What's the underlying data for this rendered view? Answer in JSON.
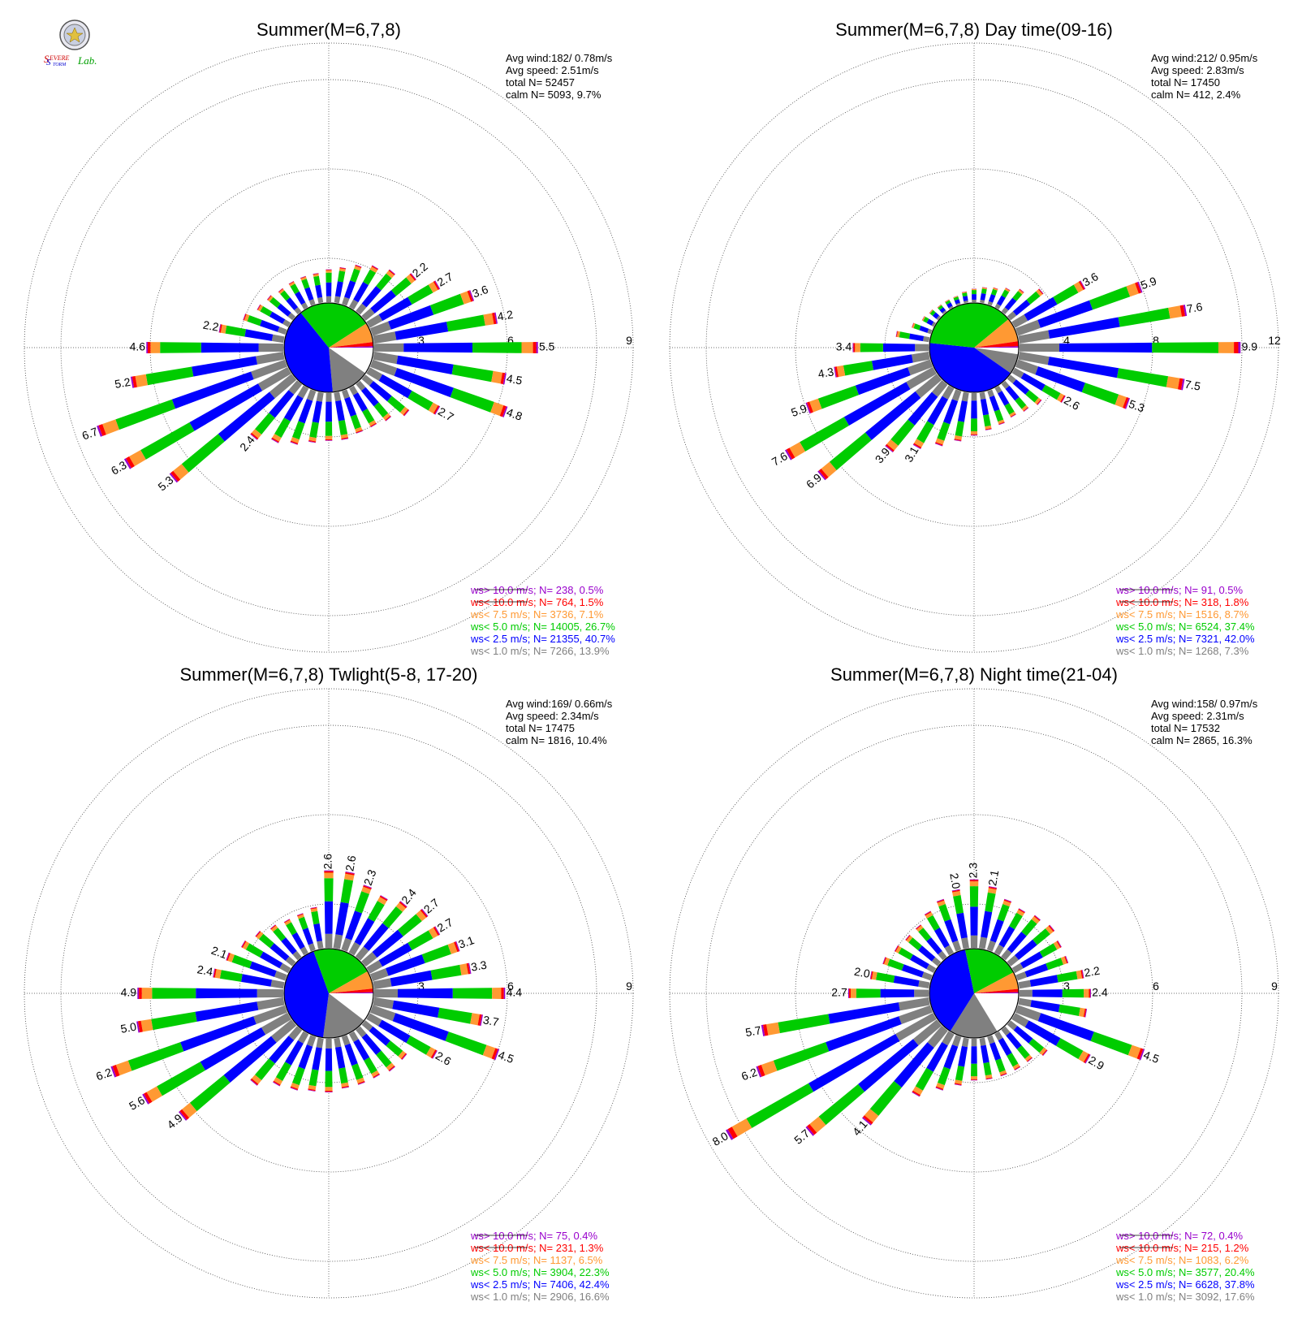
{
  "logo": {
    "text_parts": [
      "S",
      "EVERE",
      "S",
      "TORM",
      "Lab."
    ],
    "colors": [
      "#d00000",
      "#d00000",
      "#0000d0",
      "#0000d0",
      "#00a000"
    ]
  },
  "colors": {
    "gt10": "#9900cc",
    "lt10": "#ff0000",
    "lt75": "#ff9933",
    "lt50": "#00cc00",
    "lt25": "#0000ff",
    "lt10calm": "#808080",
    "calm": "#ffffff"
  },
  "chart_data": [
    {
      "type": "polar-bar",
      "title": "Summer(M=6,7,8)",
      "ring_labels": [
        "3",
        "6",
        "9"
      ],
      "rmax": 9,
      "stats": [
        "Avg wind:182/ 0.78m/s",
        "Avg speed: 2.51m/s",
        "total N=      52457",
        "calm N=   5093,   9.7%"
      ],
      "legend": [
        {
          "label": "ws> 10.0 m/s; N=   238,  0.5%",
          "color": "#9900cc"
        },
        {
          "label": "ws< 10.0 m/s; N=   764,  1.5%",
          "color": "#ff0000"
        },
        {
          "label": "ws<  7.5 m/s; N=  3736,  7.1%",
          "color": "#ff9933"
        },
        {
          "label": "ws<  5.0 m/s; N= 14005, 26.7%",
          "color": "#00cc00"
        },
        {
          "label": "ws<  2.5 m/s; N= 21355, 40.7%",
          "color": "#0000ff"
        },
        {
          "label": "ws<  1.0 m/s; N=  7266, 13.9%",
          "color": "#808080"
        }
      ],
      "pie": [
        9.7,
        13.9,
        40.7,
        26.7,
        7.1,
        1.5,
        0.5
      ],
      "totals": [
        1.1,
        1.2,
        1.4,
        1.6,
        1.8,
        2.2,
        2.7,
        3.6,
        4.2,
        5.5,
        4.5,
        4.8,
        2.7,
        1.9,
        1.6,
        1.5,
        1.5,
        1.6,
        1.6,
        1.7,
        1.9,
        2.1,
        2.4,
        5.3,
        6.3,
        6.7,
        5.2,
        4.6,
        2.2,
        1.5,
        1.2,
        1.1,
        1.0,
        1.0,
        1.0,
        1.0
      ],
      "bar_labels": {
        "5": "2.2",
        "6": "2.7",
        "7": "3.6",
        "8": "4.2",
        "9": "5.5",
        "10": "4.5",
        "11": "4.8",
        "12": "2.7",
        "22": "2.4",
        "23": "5.3",
        "24": "6.3",
        "25": "6.7",
        "26": "5.2",
        "27": "4.6",
        "28": "2.2"
      }
    },
    {
      "type": "polar-bar",
      "title": "Summer(M=6,7,8) Day time(09-16)",
      "ring_labels": [
        "4",
        "8",
        "12"
      ],
      "rmax": 12,
      "stats": [
        "Avg wind:212/ 0.95m/s",
        "Avg speed: 2.83m/s",
        "total N=      17450",
        "calm N=    412,   2.4%"
      ],
      "legend": [
        {
          "label": "ws> 10.0 m/s; N=    91,  0.5%",
          "color": "#9900cc"
        },
        {
          "label": "ws< 10.0 m/s; N=   318,  1.8%",
          "color": "#ff0000"
        },
        {
          "label": "ws<  7.5 m/s; N=  1516,  8.7%",
          "color": "#ff9933"
        },
        {
          "label": "ws<  5.0 m/s; N=  6524, 37.4%",
          "color": "#00cc00"
        },
        {
          "label": "ws<  2.5 m/s; N=  7321, 42.0%",
          "color": "#0000ff"
        },
        {
          "label": "ws<  1.0 m/s; N=  1268,  7.3%",
          "color": "#808080"
        }
      ],
      "pie": [
        2.4,
        7.3,
        42.0,
        37.4,
        8.7,
        1.8,
        0.5
      ],
      "totals": [
        0.6,
        0.7,
        0.8,
        1.0,
        1.3,
        1.9,
        3.6,
        5.9,
        7.6,
        9.9,
        7.5,
        5.3,
        2.6,
        1.8,
        1.6,
        1.5,
        1.6,
        1.7,
        1.9,
        2.2,
        2.6,
        3.1,
        3.9,
        6.9,
        7.6,
        5.9,
        4.3,
        3.4,
        1.5,
        0.9,
        0.6,
        0.5,
        0.4,
        0.4,
        0.4,
        0.5
      ],
      "bar_labels": {
        "6": "3.6",
        "7": "5.9",
        "8": "7.6",
        "9": "9.9",
        "10": "7.5",
        "11": "5.3",
        "12": "2.6",
        "21": "3.1",
        "22": "3.9",
        "23": "6.9",
        "24": "7.6",
        "25": "5.9",
        "26": "4.3",
        "27": "3.4"
      }
    },
    {
      "type": "polar-bar",
      "title": "Summer(M=6,7,8) Twlight(5-8, 17-20)",
      "ring_labels": [
        "3",
        "6",
        "9"
      ],
      "rmax": 9,
      "stats": [
        "Avg wind:169/ 0.66m/s",
        "Avg speed: 2.34m/s",
        "total N=      17475",
        "calm N=   1816,  10.4%"
      ],
      "legend": [
        {
          "label": "ws> 10.0 m/s; N=    75,  0.4%",
          "color": "#9900cc"
        },
        {
          "label": "ws< 10.0 m/s; N=   231,  1.3%",
          "color": "#ff0000"
        },
        {
          "label": "ws<  7.5 m/s; N=  1137,  6.5%",
          "color": "#ff9933"
        },
        {
          "label": "ws<  5.0 m/s; N=  3904, 22.3%",
          "color": "#00cc00"
        },
        {
          "label": "ws<  2.5 m/s; N=  7406, 42.4%",
          "color": "#0000ff"
        },
        {
          "label": "ws<  1.0 m/s; N=  2906, 16.6%",
          "color": "#808080"
        }
      ],
      "pie": [
        10.4,
        16.6,
        42.4,
        22.3,
        6.5,
        1.3,
        0.4
      ],
      "totals": [
        2.6,
        2.6,
        2.3,
        2.2,
        2.4,
        2.7,
        2.7,
        3.1,
        3.3,
        4.4,
        3.7,
        4.5,
        2.6,
        1.8,
        1.8,
        1.7,
        1.7,
        1.7,
        1.8,
        1.8,
        1.9,
        2.0,
        2.4,
        4.9,
        5.6,
        6.2,
        5.0,
        4.9,
        2.4,
        2.1,
        1.8,
        1.6,
        1.4,
        1.3,
        1.3,
        1.4
      ],
      "bar_labels": {
        "0": "2.6",
        "1": "2.6",
        "2": "2.3",
        "4": "2.4",
        "5": "2.7",
        "6": "2.7",
        "7": "3.1",
        "8": "3.3",
        "9": "4.4",
        "10": "3.7",
        "11": "4.5",
        "12": "2.6",
        "23": "4.9",
        "24": "5.6",
        "25": "6.2",
        "26": "5.0",
        "27": "4.9",
        "28": "2.4",
        "29": "2.1"
      }
    },
    {
      "type": "polar-bar",
      "title": "Summer(M=6,7,8) Night time(21-04)",
      "ring_labels": [
        "3",
        "6",
        "9"
      ],
      "rmax": 9,
      "stats": [
        "Avg wind:158/ 0.97m/s",
        "Avg speed: 2.31m/s",
        "total N=      17532",
        "calm N=   2865,  16.3%"
      ],
      "legend": [
        {
          "label": "ws> 10.0 m/s; N=    72,  0.4%",
          "color": "#9900cc"
        },
        {
          "label": "ws< 10.0 m/s; N=   215,  1.2%",
          "color": "#ff0000"
        },
        {
          "label": "ws<  7.5 m/s; N=  1083,  6.2%",
          "color": "#ff9933"
        },
        {
          "label": "ws<  5.0 m/s; N=  3577, 20.4%",
          "color": "#00cc00"
        },
        {
          "label": "ws<  2.5 m/s; N=  6628, 37.8%",
          "color": "#0000ff"
        },
        {
          "label": "ws<  1.0 m/s; N=  3092, 17.6%",
          "color": "#808080"
        }
      ],
      "pie": [
        16.3,
        17.6,
        37.8,
        20.4,
        6.2,
        1.2,
        0.4
      ],
      "totals": [
        2.3,
        2.1,
        1.8,
        1.7,
        1.8,
        1.9,
        1.8,
        1.8,
        2.2,
        2.4,
        2.3,
        4.5,
        2.9,
        1.6,
        1.4,
        1.4,
        1.4,
        1.4,
        1.4,
        1.6,
        1.9,
        2.4,
        4.1,
        5.7,
        8.0,
        6.2,
        5.7,
        2.7,
        2.0,
        1.7,
        1.5,
        1.4,
        1.4,
        1.6,
        1.8,
        2.0
      ],
      "bar_labels": {
        "0": "2.3",
        "1": "2.1",
        "35": "2.0",
        "8": "2.2",
        "9": "2.4",
        "11": "4.5",
        "12": "2.9",
        "22": "4.1",
        "23": "5.7",
        "24": "8.0",
        "25": "6.2",
        "26": "5.7",
        "27": "2.7",
        "28": "2.0"
      }
    }
  ]
}
